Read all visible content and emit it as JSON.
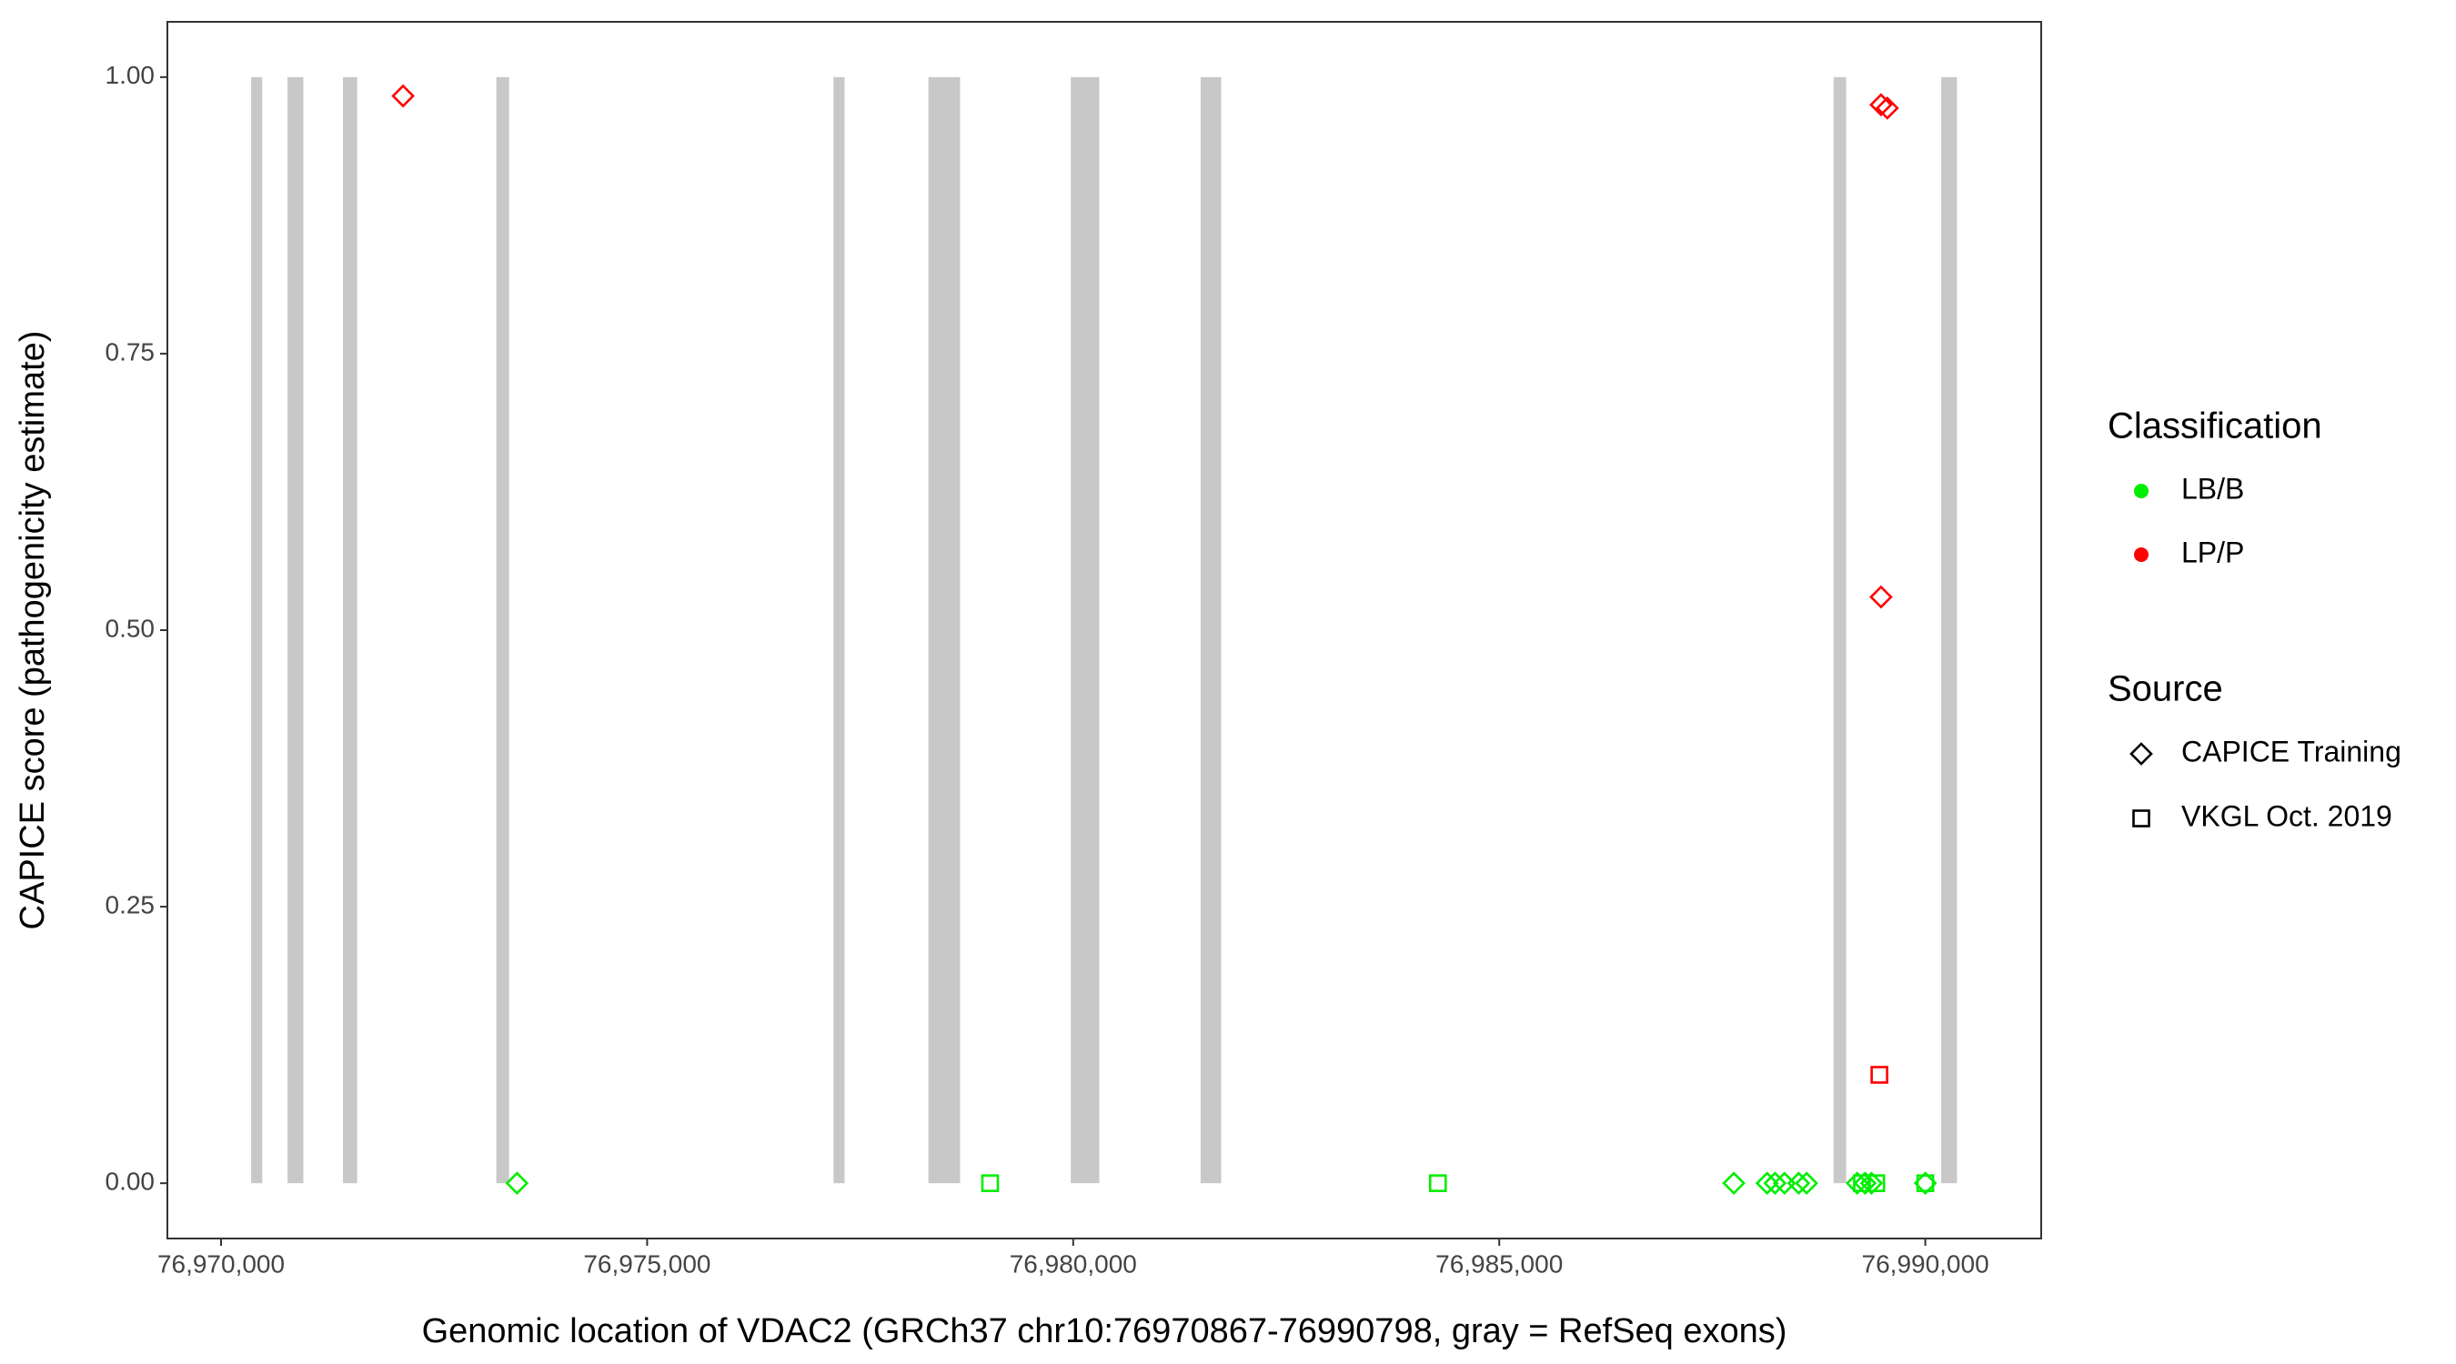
{
  "chart_data": {
    "type": "scatter",
    "x_label": "Genomic location of VDAC2 (GRCh37 chr10:76970867-76990798, gray = RefSeq exons)",
    "y_label": "CAPICE score (pathogenicity estimate)",
    "xlim": [
      76969370,
      76991360
    ],
    "ylim": [
      -0.05,
      1.05
    ],
    "xticks": [
      {
        "value": 76970000,
        "label": "76,970,000"
      },
      {
        "value": 76975000,
        "label": "76,975,000"
      },
      {
        "value": 76980000,
        "label": "76,980,000"
      },
      {
        "value": 76985000,
        "label": "76,985,000"
      },
      {
        "value": 76990000,
        "label": "76,990,000"
      }
    ],
    "yticks": [
      {
        "value": 0,
        "label": "0.00"
      },
      {
        "value": 0.25,
        "label": "0.25"
      },
      {
        "value": 0.5,
        "label": "0.50"
      },
      {
        "value": 0.75,
        "label": "0.75"
      },
      {
        "value": 1,
        "label": "1.00"
      }
    ],
    "exon_color": "#c8c8c8",
    "exons": [
      [
        76970353,
        76970483
      ],
      [
        76970780,
        76970966
      ],
      [
        76971430,
        76971597
      ],
      [
        76973231,
        76973380
      ],
      [
        76977187,
        76977317
      ],
      [
        76978301,
        76978672
      ],
      [
        76979972,
        76980306
      ],
      [
        76981495,
        76981737
      ],
      [
        76988923,
        76989071
      ],
      [
        76990186,
        76990372
      ]
    ],
    "classification_title": "Classification",
    "classifications": [
      {
        "name": "LB/B",
        "color": "#00ee00"
      },
      {
        "name": "LP/P",
        "color": "#ff0000"
      }
    ],
    "source_title": "Source",
    "sources": [
      {
        "name": "CAPICE Training",
        "shape": "diamond"
      },
      {
        "name": "VKGL Oct. 2019",
        "shape": "square"
      }
    ],
    "points": {
      "x": [
        76972136,
        76973473,
        76979025,
        76984280,
        76987753,
        76988143,
        76988236,
        76988347,
        76988514,
        76988607,
        76989201,
        76989294,
        76989368,
        76990000,
        76989257,
        76989424,
        76990000,
        76989480,
        76989554,
        76989480,
        76989461
      ],
      "y": [
        0.983,
        0,
        0,
        0,
        0,
        0,
        0,
        0,
        0,
        0,
        0,
        0,
        0,
        0,
        0,
        0,
        0,
        0.975,
        0.972,
        0.53,
        0.098
      ],
      "classification": [
        1,
        0,
        0,
        0,
        0,
        0,
        0,
        0,
        0,
        0,
        0,
        0,
        0,
        0,
        0,
        0,
        0,
        1,
        1,
        1,
        1
      ],
      "source": [
        0,
        0,
        1,
        1,
        0,
        0,
        0,
        0,
        0,
        0,
        0,
        0,
        0,
        0,
        1,
        1,
        1,
        0,
        0,
        0,
        1
      ]
    }
  }
}
